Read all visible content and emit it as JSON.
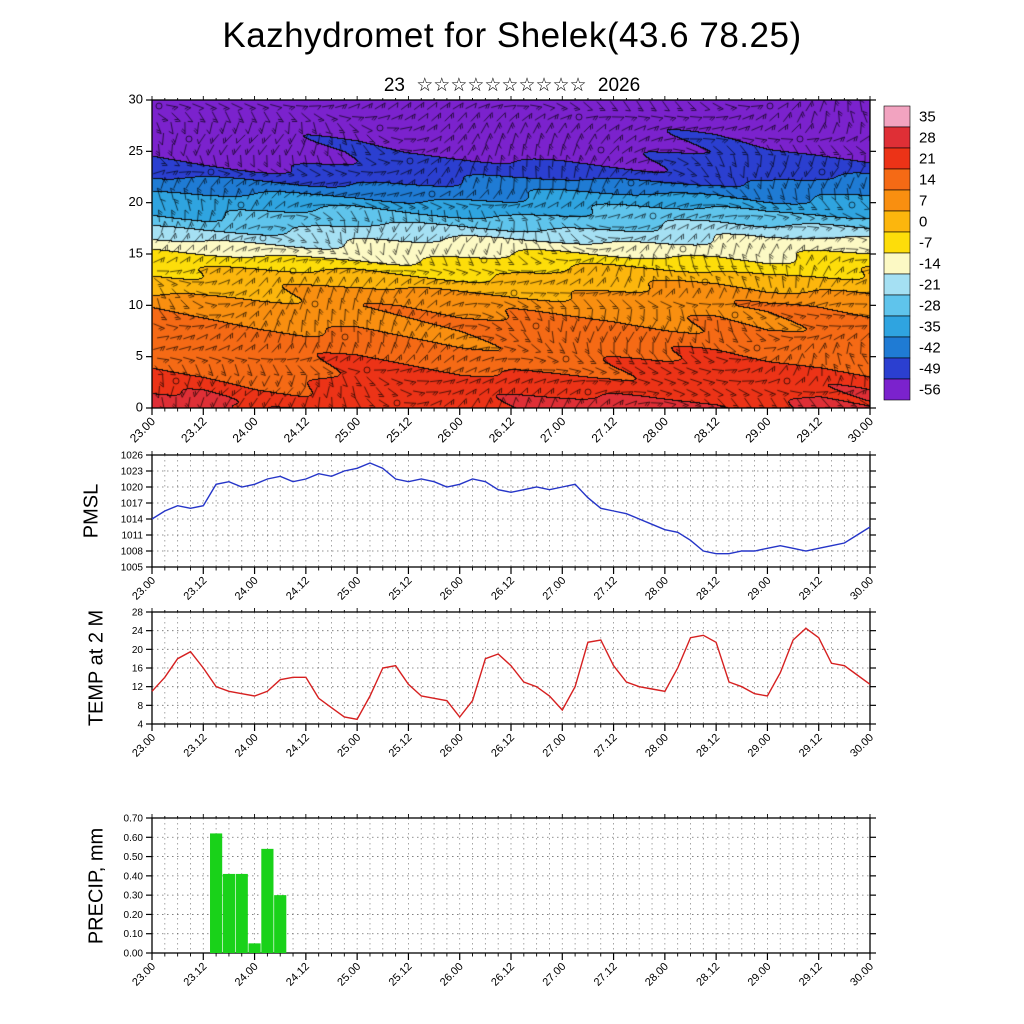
{
  "title": "Kazhydromet for Shelek(43.6 78.25)",
  "subtitle": {
    "day": "23",
    "month_stars": "☆☆☆☆☆☆☆☆☆☆",
    "year": "2026"
  },
  "time_axis": {
    "tick_labels": [
      "23.00",
      "23.12",
      "24.00",
      "24.12",
      "25.00",
      "25.12",
      "26.00",
      "26.12",
      "27.00",
      "27.12",
      "28.00",
      "28.12",
      "29.00",
      "29.12",
      "30.00"
    ],
    "minor_step_hours": 3,
    "major_step_hours": 12
  },
  "chart_data": [
    {
      "type": "heatmap",
      "name": "temperature-height-cross-section",
      "ylim": [
        0,
        30
      ],
      "ytick_labels": [
        "0",
        "5",
        "10",
        "15",
        "20",
        "25",
        "30"
      ],
      "yticks": [
        0,
        5,
        10,
        15,
        20,
        25,
        30
      ],
      "heights": [
        0,
        5,
        10,
        12,
        13.5,
        15,
        16.5,
        18,
        20,
        21.5,
        23,
        25,
        30
      ],
      "temps": [
        [
          27,
          26,
          22,
          22,
          27,
          23,
          22,
          24,
          26,
          27,
          27,
          28,
          24,
          27,
          25
        ],
        [
          16,
          15,
          14,
          14,
          16,
          15,
          14,
          15,
          15,
          16,
          16,
          17,
          15,
          16,
          15
        ],
        [
          9,
          8,
          7,
          7,
          9,
          8,
          7,
          8,
          8,
          9,
          9,
          10,
          8,
          9,
          8
        ],
        [
          2,
          1,
          1,
          1,
          2,
          1,
          1,
          1,
          2,
          2,
          2,
          3,
          1,
          2,
          2
        ],
        [
          -4,
          -5,
          -5,
          -5,
          -4,
          -5,
          -5,
          -5,
          -4,
          -4,
          -4,
          -3,
          -5,
          -4,
          -4
        ],
        [
          -11,
          -12,
          -12,
          -12,
          -11,
          -12,
          -12,
          -12,
          -11,
          -11,
          -11,
          -10,
          -12,
          -11,
          -11
        ],
        [
          -18,
          -19,
          -19,
          -19,
          -18,
          -19,
          -19,
          -19,
          -18,
          -18,
          -18,
          -17,
          -19,
          -18,
          -18
        ],
        [
          -26,
          -27,
          -27,
          -27,
          -26,
          -27,
          -27,
          -27,
          -26,
          -26,
          -26,
          -25,
          -27,
          -26,
          -26
        ],
        [
          -35,
          -36,
          -36,
          -36,
          -35,
          -36,
          -36,
          -36,
          -35,
          -35,
          -35,
          -34,
          -36,
          -35,
          -35
        ],
        [
          -42,
          -43,
          -43,
          -43,
          -42,
          -43,
          -43,
          -43,
          -42,
          -42,
          -42,
          -41,
          -43,
          -42,
          -42
        ],
        [
          -49,
          -50,
          -50,
          -50,
          -49,
          -50,
          -50,
          -50,
          -49,
          -49,
          -49,
          -48,
          -50,
          -49,
          -49
        ],
        [
          -54,
          -55,
          -56,
          -55,
          -54,
          -55,
          -55,
          -55,
          -54,
          -54,
          -54,
          -53,
          -55,
          -54,
          -54
        ],
        [
          -57,
          -58,
          -58,
          -58,
          -57,
          -58,
          -58,
          -58,
          -57,
          -57,
          -57,
          -56,
          -58,
          -57,
          -57
        ]
      ],
      "overlay": "wind-barbs",
      "colorbar": {
        "tick_labels": [
          "35",
          "28",
          "21",
          "14",
          "7",
          "0",
          "-7",
          "-14",
          "-21",
          "-28",
          "-35",
          "-42",
          "-49",
          "-56"
        ],
        "colors": [
          "#f2a3c0",
          "#df2f36",
          "#ec3317",
          "#f56a15",
          "#f98f10",
          "#fcb60d",
          "#fddd0a",
          "#fcf9c4",
          "#a5e0f3",
          "#5fc4ec",
          "#2fa4e0",
          "#1f7bd4",
          "#2b3fd0",
          "#7b22cd"
        ]
      }
    },
    {
      "type": "line",
      "name": "pmsl",
      "ylabel": "PMSL",
      "ylim": [
        1005,
        1026
      ],
      "yticks": [
        1005,
        1008,
        1011,
        1014,
        1017,
        1020,
        1023,
        1026
      ],
      "ytick_labels": [
        "1005",
        "1008",
        "1011",
        "1014",
        "1017",
        "1020",
        "1023",
        "1026"
      ],
      "color": "#2535c8",
      "step_hours": 3,
      "values": [
        1014,
        1015.5,
        1016.5,
        1016,
        1016.5,
        1020.5,
        1021,
        1020,
        1020.5,
        1021.5,
        1022,
        1021,
        1021.5,
        1022.5,
        1022,
        1023,
        1023.5,
        1024.5,
        1023.5,
        1021.5,
        1021,
        1021.5,
        1021,
        1020,
        1020.5,
        1021.5,
        1021,
        1019.5,
        1019,
        1019.5,
        1020,
        1019.5,
        1020,
        1020.5,
        1018,
        1016,
        1015.5,
        1015,
        1014,
        1013,
        1012,
        1011.5,
        1010,
        1008,
        1007.5,
        1007.5,
        1008,
        1008,
        1008.5,
        1009,
        1008.5,
        1008,
        1008.5,
        1009,
        1009.5,
        1011,
        1012.5
      ]
    },
    {
      "type": "line",
      "name": "temp-at-2m",
      "ylabel": "TEMP at 2 M",
      "ylim": [
        4,
        28
      ],
      "yticks": [
        4,
        8,
        12,
        16,
        20,
        24,
        28
      ],
      "ytick_labels": [
        "4",
        "8",
        "12",
        "16",
        "20",
        "24",
        "28"
      ],
      "color": "#d62020",
      "step_hours": 3,
      "values": [
        11,
        14,
        18,
        19.5,
        16,
        12,
        11,
        10.5,
        10,
        11,
        13.5,
        14,
        14,
        9.5,
        7.5,
        5.5,
        5,
        10,
        16,
        16.5,
        12.5,
        10,
        9.5,
        9,
        5.5,
        9,
        18,
        19,
        16.5,
        13,
        12,
        10,
        7,
        12,
        21.5,
        22,
        16.5,
        13,
        12,
        11.5,
        11,
        16,
        22.5,
        23,
        21.5,
        13,
        12,
        10.5,
        10,
        15,
        22,
        24.5,
        22.5,
        17,
        16.5,
        14.5,
        12.5
      ]
    },
    {
      "type": "bar",
      "name": "precip",
      "ylabel": "PRECIP, mm",
      "ylim": [
        0,
        0.7
      ],
      "yticks": [
        0,
        0.1,
        0.2,
        0.3,
        0.4,
        0.5,
        0.6,
        0.7
      ],
      "ytick_labels": [
        "0.00",
        "0.10",
        "0.20",
        "0.30",
        "0.40",
        "0.50",
        "0.60",
        "0.70"
      ],
      "color": "#19d219",
      "step_hours": 3,
      "values": [
        0,
        0,
        0,
        0,
        0,
        0.62,
        0.41,
        0.41,
        0.05,
        0.54,
        0.3,
        0,
        0,
        0,
        0,
        0,
        0,
        0,
        0,
        0,
        0,
        0,
        0,
        0,
        0,
        0,
        0,
        0,
        0,
        0,
        0,
        0,
        0,
        0,
        0,
        0,
        0,
        0,
        0,
        0,
        0,
        0,
        0,
        0,
        0,
        0,
        0,
        0,
        0,
        0,
        0,
        0,
        0,
        0,
        0,
        0,
        0
      ]
    }
  ]
}
